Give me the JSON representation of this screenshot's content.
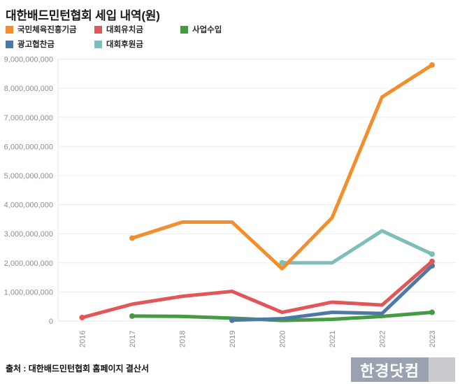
{
  "title": "대한배드민턴협회 세입 내역(원)",
  "source": "출처 : 대한배드민턴협회 홈페이지 결산서",
  "logo": {
    "text": "한경닷컴",
    "bg": "#9AA1B1",
    "accent_bg": "#C9CBCE"
  },
  "chart_data": {
    "type": "line",
    "title": "대한배드민턴협회 세입 내역(원)",
    "xlabel": "",
    "ylabel": "",
    "x": [
      "2016",
      "2017",
      "2018",
      "2019",
      "2020",
      "2021",
      "2022",
      "2023"
    ],
    "ylim": [
      0,
      9000000000
    ],
    "ytick_step": 1000000000,
    "yticks": [
      "0",
      "1,000,000,000",
      "2,000,000,000",
      "3,000,000,000",
      "4,000,000,000",
      "5,000,000,000",
      "6,000,000,000",
      "7,000,000,000",
      "8,000,000,000",
      "9,000,000,000"
    ],
    "grid": true,
    "legend_position": "top-left",
    "series": [
      {
        "name": "국민체육진흥기금",
        "color": "#F28E2B",
        "values": [
          null,
          2850000000,
          3400000000,
          3400000000,
          1800000000,
          3550000000,
          7700000000,
          8800000000
        ]
      },
      {
        "name": "대회유치금",
        "color": "#E15759",
        "values": [
          120000000,
          580000000,
          850000000,
          1020000000,
          300000000,
          650000000,
          550000000,
          2050000000
        ]
      },
      {
        "name": "사업수입",
        "color": "#459A43",
        "values": [
          null,
          170000000,
          160000000,
          100000000,
          20000000,
          60000000,
          160000000,
          300000000
        ]
      },
      {
        "name": "광고협찬금",
        "color": "#4E79A7",
        "values": [
          null,
          null,
          null,
          30000000,
          80000000,
          300000000,
          260000000,
          1900000000
        ]
      },
      {
        "name": "대회후원금",
        "color": "#7CBEB8",
        "values": [
          null,
          null,
          null,
          null,
          2000000000,
          2000000000,
          3100000000,
          2300000000
        ]
      }
    ]
  }
}
